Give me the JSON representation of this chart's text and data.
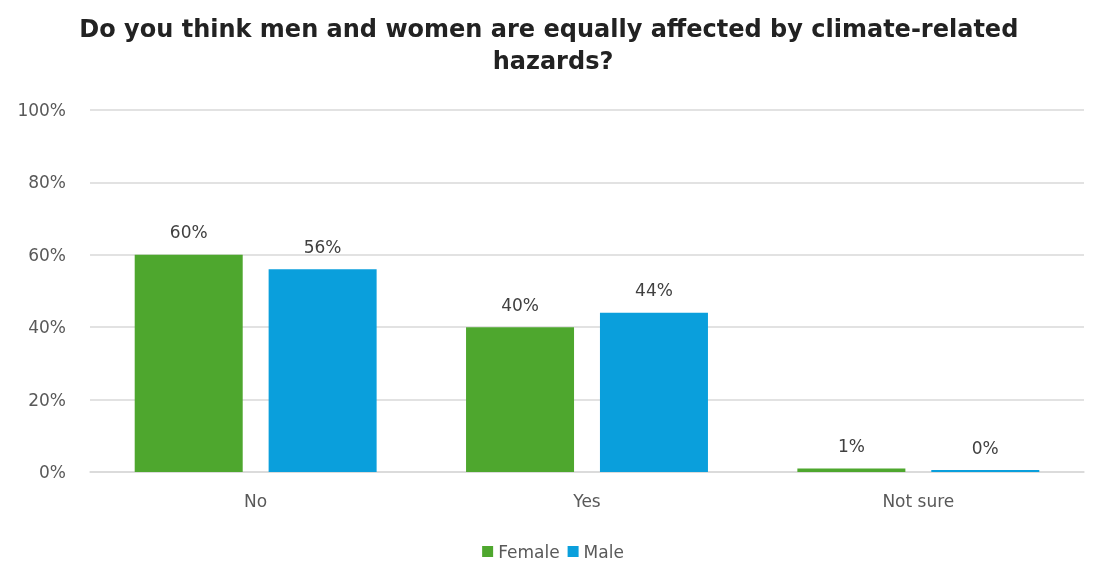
{
  "chart_data": {
    "type": "bar",
    "title": "Do you think men and women are equally affected by climate-related hazards?",
    "categories": [
      "No",
      "Yes",
      "Not sure"
    ],
    "series": [
      {
        "name": "Female",
        "color": "#4ea72e",
        "values": [
          60,
          40,
          1
        ],
        "value_labels": [
          "60%",
          "40%",
          "1%"
        ]
      },
      {
        "name": "Male",
        "color": "#0a9fdc",
        "values": [
          56,
          44,
          0
        ],
        "value_labels": [
          "56%",
          "44%",
          "0%"
        ]
      }
    ],
    "ylim": [
      0,
      100
    ],
    "yticks": [
      {
        "value": 0,
        "label": "0%"
      },
      {
        "value": 20,
        "label": "20%"
      },
      {
        "value": 40,
        "label": "40%"
      },
      {
        "value": 60,
        "label": "60%"
      },
      {
        "value": 80,
        "label": "80%"
      },
      {
        "value": 100,
        "label": "100%"
      }
    ],
    "grid": "y",
    "legend": "bottom"
  }
}
